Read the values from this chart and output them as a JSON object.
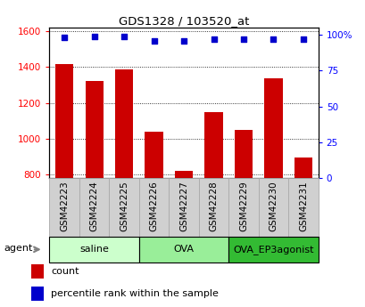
{
  "title": "GDS1328 / 103520_at",
  "samples": [
    "GSM42223",
    "GSM42224",
    "GSM42225",
    "GSM42226",
    "GSM42227",
    "GSM42228",
    "GSM42229",
    "GSM42230",
    "GSM42231"
  ],
  "counts": [
    1415,
    1320,
    1385,
    1040,
    820,
    1150,
    1050,
    1335,
    895
  ],
  "percentiles": [
    98,
    99,
    99,
    96,
    96,
    97,
    97,
    97,
    97
  ],
  "groups": [
    {
      "label": "saline",
      "start": 0,
      "end": 3,
      "color": "#ccffcc"
    },
    {
      "label": "OVA",
      "start": 3,
      "end": 6,
      "color": "#99ee99"
    },
    {
      "label": "OVA_EP3agonist",
      "start": 6,
      "end": 9,
      "color": "#33bb33"
    }
  ],
  "ylim_left": [
    780,
    1620
  ],
  "ylim_right": [
    0,
    105
  ],
  "yticks_left": [
    800,
    1000,
    1200,
    1400,
    1600
  ],
  "yticks_right": [
    0,
    25,
    50,
    75,
    100
  ],
  "bar_color": "#cc0000",
  "dot_color": "#0000cc",
  "bar_width": 0.6,
  "background_color": "#ffffff",
  "legend_count_label": "count",
  "legend_pct_label": "percentile rank within the sample",
  "agent_label": "agent",
  "cell_bg": "#d0d0d0",
  "cell_border": "#aaaaaa"
}
